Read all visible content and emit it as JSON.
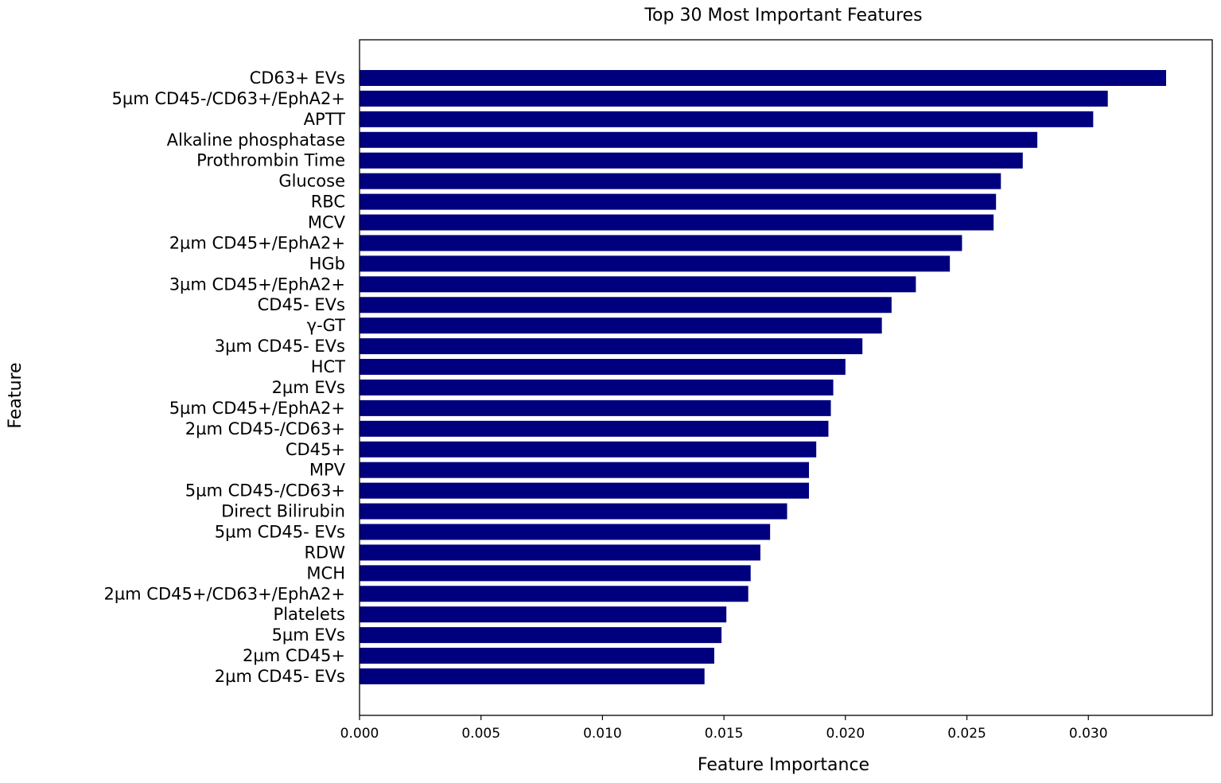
{
  "chart_data": {
    "type": "bar",
    "orientation": "horizontal",
    "title": "Top 30 Most Important Features",
    "xlabel": "Feature Importance",
    "ylabel": "Feature",
    "xlim": [
      0,
      0.0351
    ],
    "xticks": [
      "0.000",
      "0.005",
      "0.010",
      "0.015",
      "0.020",
      "0.025",
      "0.030"
    ],
    "bar_color": "#00007f",
    "grid": false,
    "categories": [
      "CD63+ EVs",
      "5µm CD45-/CD63+/EphA2+",
      "APTT",
      "Alkaline phosphatase",
      "Prothrombin Time",
      "Glucose",
      "RBC",
      "MCV",
      "2µm CD45+/EphA2+",
      "HGb",
      "3µm CD45+/EphA2+",
      "CD45- EVs",
      "γ-GT",
      "3µm CD45- EVs",
      "HCT",
      "2µm EVs",
      "5µm CD45+/EphA2+",
      "2µm CD45-/CD63+",
      "CD45+",
      "MPV",
      "5µm CD45-/CD63+",
      "Direct Bilirubin",
      "5µm CD45- EVs",
      "RDW",
      "MCH",
      "2µm CD45+/CD63+/EphA2+",
      "Platelets",
      "5µm EVs",
      "2µm CD45+",
      "2µm CD45- EVs"
    ],
    "values": [
      0.0332,
      0.0308,
      0.0302,
      0.0279,
      0.0273,
      0.0264,
      0.0262,
      0.0261,
      0.0248,
      0.0243,
      0.0229,
      0.0219,
      0.0215,
      0.0207,
      0.02,
      0.0195,
      0.0194,
      0.0193,
      0.0188,
      0.0185,
      0.0185,
      0.0176,
      0.0169,
      0.0165,
      0.0161,
      0.016,
      0.0151,
      0.0149,
      0.0146,
      0.0142
    ]
  }
}
